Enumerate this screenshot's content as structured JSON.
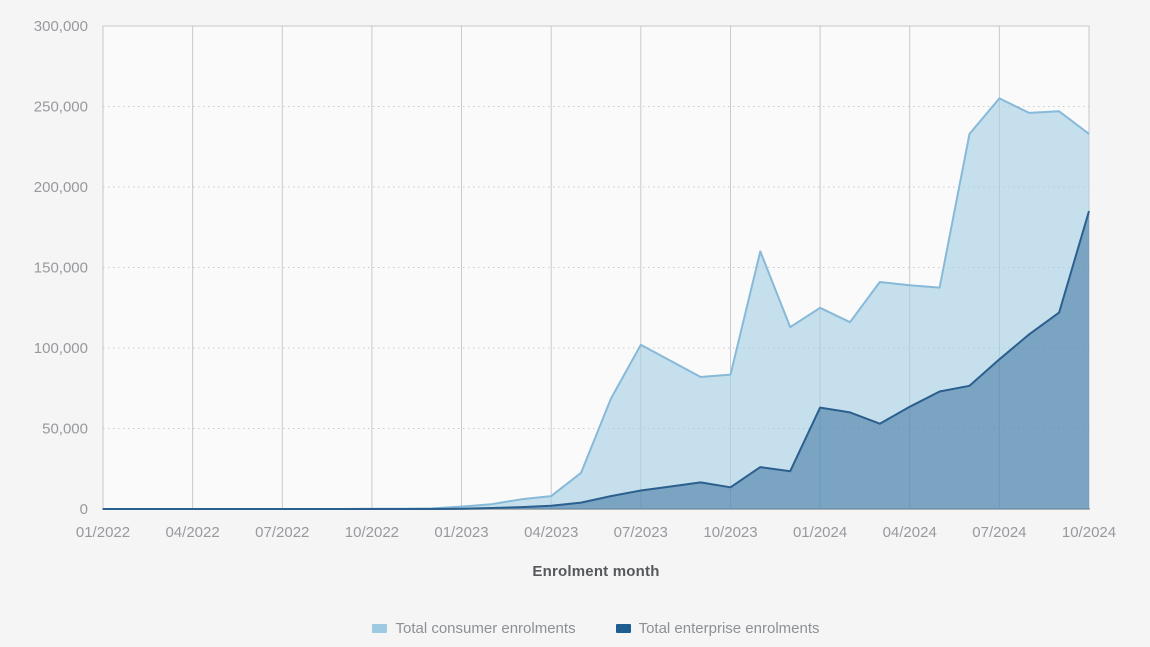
{
  "page": {
    "background": "#f5f5f6"
  },
  "style": {
    "plot_background": "#fafafa",
    "grid": "#c9cacc",
    "border": "#c6c7c9",
    "axis_line": "#a2a4a6",
    "axis_text": "#97999d",
    "title_text": "#55585c",
    "legend_text": "#8d9094"
  },
  "chart_data": {
    "type": "area",
    "title": "",
    "xlabel": "Enrolment month",
    "ylabel": "",
    "ylim": [
      0,
      300000
    ],
    "y_ticks": [
      0,
      50000,
      100000,
      150000,
      200000,
      250000,
      300000
    ],
    "y_tick_labels": [
      "0",
      "50,000",
      "100,000",
      "150,000",
      "200,000",
      "250,000",
      "300,000"
    ],
    "grid": {
      "vertical": "solid",
      "horizontal": "dotted"
    },
    "legend_position": "bottom",
    "x_labels": [
      "01/2022",
      "02/2022",
      "03/2022",
      "04/2022",
      "05/2022",
      "06/2022",
      "07/2022",
      "08/2022",
      "09/2022",
      "10/2022",
      "11/2022",
      "12/2022",
      "01/2023",
      "02/2023",
      "03/2023",
      "04/2023",
      "05/2023",
      "06/2023",
      "07/2023",
      "08/2023",
      "09/2023",
      "10/2023",
      "11/2023",
      "12/2023",
      "01/2024",
      "02/2024",
      "03/2024",
      "04/2024",
      "05/2024",
      "06/2024",
      "07/2024",
      "08/2024",
      "09/2024",
      "10/2024"
    ],
    "x_tick_indices": [
      0,
      3,
      6,
      9,
      12,
      15,
      18,
      21,
      24,
      27,
      30,
      33
    ],
    "x_tick_labels": [
      "01/2022",
      "04/2022",
      "07/2022",
      "10/2022",
      "01/2023",
      "04/2023",
      "07/2023",
      "10/2023",
      "01/2024",
      "04/2024",
      "07/2024",
      "10/2024"
    ],
    "series": [
      {
        "name": "Total consumer enrolments",
        "color": "#9dcae2",
        "stroke": "#87b9d9",
        "fill": "rgba(166,206,227,0.62)",
        "values": [
          0,
          0,
          0,
          0,
          0,
          0,
          0,
          0,
          0,
          100,
          200,
          400,
          1500,
          3000,
          6000,
          8000,
          22500,
          68500,
          102000,
          92000,
          82000,
          83500,
          160000,
          113000,
          125000,
          116000,
          141000,
          139000,
          137500,
          233000,
          255000,
          246000,
          247000,
          233000
        ]
      },
      {
        "name": "Total enterprise enrolments",
        "color": "#1f5c90",
        "stroke": "#2b5f8e",
        "fill": "rgba(31,92,144,0.45)",
        "values": [
          0,
          0,
          0,
          0,
          0,
          0,
          0,
          0,
          0,
          0,
          0,
          0,
          200,
          600,
          1200,
          2000,
          4000,
          8000,
          11500,
          14000,
          16500,
          13500,
          26000,
          23500,
          63000,
          60000,
          53000,
          63500,
          73000,
          76500,
          93000,
          108500,
          122000,
          185000
        ]
      }
    ]
  }
}
